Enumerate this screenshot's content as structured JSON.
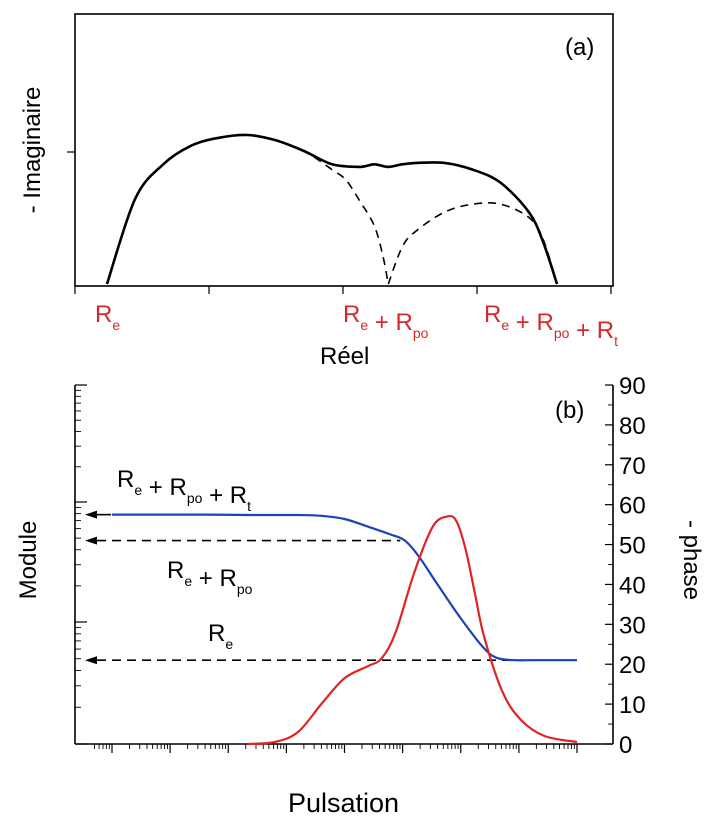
{
  "chart_data": [
    {
      "type": "line",
      "panel_label": "(a)",
      "xlabel": "Réel",
      "ylabel": "- Imaginaire",
      "x_markers": [
        {
          "label_parts": [
            [
              "R",
              "e"
            ]
          ],
          "value": 0
        },
        {
          "label_parts": [
            [
              "R",
              "e"
            ],
            [
              "R",
              "po"
            ]
          ],
          "value": 1
        },
        {
          "label_parts": [
            [
              "R",
              "e"
            ],
            [
              "R",
              "po"
            ],
            [
              "R",
              "t"
            ]
          ],
          "value": 1.6
        }
      ],
      "series": [
        {
          "style": "solid",
          "x": [
            0,
            0.1,
            0.2,
            0.3,
            0.4,
            0.5,
            0.6,
            0.7,
            0.8,
            0.9,
            0.95,
            1.0,
            1.05,
            1.1,
            1.2,
            1.3,
            1.4,
            1.5,
            1.55,
            1.6
          ],
          "y": [
            0,
            0.32,
            0.45,
            0.52,
            0.55,
            0.56,
            0.54,
            0.5,
            0.45,
            0.44,
            0.45,
            0.44,
            0.45,
            0.455,
            0.455,
            0.43,
            0.38,
            0.27,
            0.16,
            0
          ]
        },
        {
          "style": "dashed",
          "x": [
            0.6,
            0.7,
            0.8,
            0.85,
            0.9,
            0.95,
            0.98,
            1.0
          ],
          "y": [
            0.54,
            0.5,
            0.43,
            0.39,
            0.31,
            0.22,
            0.11,
            0
          ]
        },
        {
          "style": "dashed",
          "x": [
            1.0,
            1.05,
            1.1,
            1.2,
            1.3,
            1.4,
            1.5,
            1.55,
            1.6
          ],
          "y": [
            0,
            0.14,
            0.2,
            0.27,
            0.3,
            0.3,
            0.25,
            0.17,
            0
          ]
        }
      ]
    },
    {
      "type": "line",
      "panel_label": "(b)",
      "xlabel": "Pulsation",
      "ylabel_left": "Module",
      "ylabel_right": "- phase",
      "right_ticks": [
        0,
        10,
        20,
        30,
        40,
        50,
        60,
        70,
        80,
        90
      ],
      "yright_lim": [
        0,
        90
      ],
      "x_lim": [
        0,
        1
      ],
      "series": [
        {
          "name": "Module",
          "color": "#1a43b8",
          "x": [
            0.0,
            0.1,
            0.2,
            0.3,
            0.4,
            0.45,
            0.5,
            0.55,
            0.6,
            0.63,
            0.66,
            0.7,
            0.75,
            0.8,
            0.83,
            0.87,
            0.9,
            1.0
          ],
          "y": [
            57.5,
            57.5,
            57.5,
            57.4,
            57.4,
            57.2,
            56.4,
            54.5,
            52.5,
            51.0,
            47.0,
            40.0,
            31.5,
            24.0,
            21.5,
            21.0,
            21.0,
            21.0
          ]
        },
        {
          "name": "- phase",
          "color": "#e02323",
          "x": [
            0.29,
            0.35,
            0.4,
            0.45,
            0.5,
            0.55,
            0.58,
            0.61,
            0.65,
            0.69,
            0.72,
            0.74,
            0.76,
            0.78,
            0.8,
            0.84,
            0.88,
            0.93,
            1.0
          ],
          "y": [
            0,
            0.5,
            3.0,
            10.0,
            16.5,
            19.5,
            21.5,
            28.0,
            43.0,
            54.5,
            57.0,
            56.0,
            49.0,
            38.0,
            27.0,
            13.0,
            6.0,
            2.0,
            0.5
          ]
        }
      ],
      "annotations": [
        {
          "label_parts": [
            [
              "R",
              "e"
            ],
            [
              "R",
              "po"
            ],
            [
              "R",
              "t"
            ]
          ],
          "y": 57.5,
          "arrow_to": 0,
          "line": "none"
        },
        {
          "label_parts": [
            [
              "R",
              "e"
            ],
            [
              "R",
              "po"
            ]
          ],
          "y": 51.0,
          "arrow_to": 0,
          "line": "dashed",
          "line_end": 0.62
        },
        {
          "label_parts": [
            [
              "R",
              "e"
            ]
          ],
          "y": 21.0,
          "arrow_to": 0,
          "line": "dashed",
          "line_end": 1.0
        }
      ]
    }
  ]
}
